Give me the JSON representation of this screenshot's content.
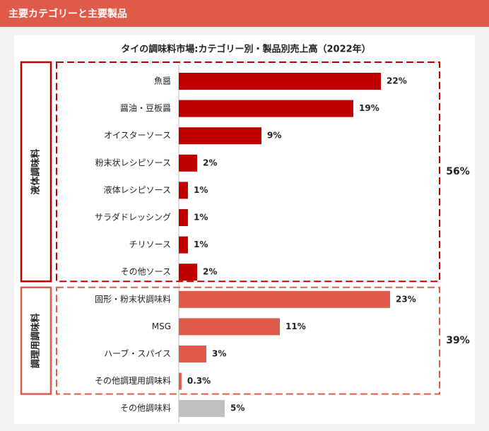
{
  "header": "主要カテゴリーと主要製品",
  "chart_data": {
    "type": "grouped-hbar",
    "title": "タイの調味料市場:カテゴリー別・製品別売上高（2022年）",
    "xlim": [
      0,
      30
    ],
    "groups": [
      {
        "name": "液体調味料",
        "color": "#c00000",
        "total": 56,
        "total_label": "56%",
        "categories": [
          "魚醤",
          "醤油・豆板醤",
          "オイスターソース",
          "粉末状レシピソース",
          "液体レシピソース",
          "サラダドレッシング",
          "チリソース",
          "その他ソース"
        ],
        "values": [
          22,
          19,
          9,
          2,
          1,
          1,
          1,
          2
        ],
        "value_labels": [
          "22%",
          "19%",
          "9%",
          "2%",
          "1%",
          "1%",
          "1%",
          "2%"
        ]
      },
      {
        "name": "調理用調味料",
        "color": "#e05a4a",
        "total": 39,
        "total_label": "39%",
        "categories": [
          "固形・粉末状調味料",
          "MSG",
          "ハーブ・スパイス",
          "その他調理用調味料"
        ],
        "values": [
          23,
          11,
          3,
          0.3
        ],
        "value_labels": [
          "23%",
          "11%",
          "3%",
          "0.3%"
        ]
      },
      {
        "color": "#bfbfbf",
        "categories": [
          "その他調味料"
        ],
        "values": [
          5
        ],
        "value_labels": [
          "5%"
        ]
      }
    ]
  }
}
